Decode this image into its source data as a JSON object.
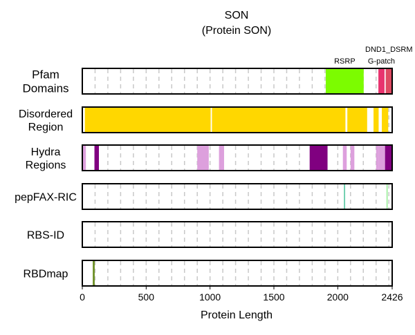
{
  "chart_data": {
    "type": "feature-track",
    "title": "SON",
    "subtitle": "(Protein SON)",
    "xlabel": "Protein Length",
    "xlim": [
      0,
      2426
    ],
    "xticks": [
      0,
      500,
      1000,
      1500,
      2000,
      2426
    ],
    "xtick_labels": [
      "0",
      "500",
      "1000",
      "1500",
      "2000",
      "2426"
    ],
    "grid": true,
    "grid_step": 100,
    "colors": {
      "grid": "#c8c8c8",
      "border": "#000000",
      "disordered": "#ffd700",
      "pfam_rsrp": "#7cfc00",
      "pfam_gpatch": "#e8336e",
      "pfam_dsrm": "#de4a62",
      "hydra_light": "#dda0dd",
      "hydra_dark": "#800080",
      "pepfax": "#66cdaa",
      "pepfax_light": "#90ee90",
      "rbdmap": "#6b8e23"
    },
    "tracks": [
      {
        "id": "pfam",
        "label": [
          "Pfam",
          "Domains"
        ],
        "features": [
          {
            "name": "RSRP",
            "start": 1906,
            "end": 2203,
            "color": "pfam_rsrp",
            "label_row": 0
          },
          {
            "name": "G-patch",
            "start": 2318,
            "end": 2366,
            "color": "pfam_gpatch",
            "label_row": 0
          },
          {
            "name": "DND1_DSRM",
            "start": 2375,
            "end": 2426,
            "color": "pfam_dsrm",
            "label_row": 1
          }
        ]
      },
      {
        "id": "disordered",
        "label": [
          "Disordered",
          "Region"
        ],
        "features": [
          {
            "start": 20,
            "end": 1005,
            "color": "disordered"
          },
          {
            "start": 1015,
            "end": 2060,
            "color": "disordered"
          },
          {
            "start": 2075,
            "end": 2230,
            "color": "disordered"
          },
          {
            "start": 2280,
            "end": 2320,
            "color": "disordered"
          },
          {
            "start": 2345,
            "end": 2395,
            "color": "disordered"
          }
        ]
      },
      {
        "id": "hydra",
        "label": [
          "Hydra",
          "Regions"
        ],
        "features": [
          {
            "start": 0,
            "end": 28,
            "color": "hydra_light"
          },
          {
            "start": 95,
            "end": 130,
            "color": "hydra_dark"
          },
          {
            "start": 900,
            "end": 990,
            "color": "hydra_light"
          },
          {
            "start": 1070,
            "end": 1110,
            "color": "hydra_light"
          },
          {
            "start": 1780,
            "end": 1920,
            "color": "hydra_dark"
          },
          {
            "start": 2040,
            "end": 2070,
            "color": "hydra_light"
          },
          {
            "start": 2100,
            "end": 2130,
            "color": "hydra_light"
          },
          {
            "start": 2300,
            "end": 2320,
            "color": "hydra_light"
          },
          {
            "start": 2320,
            "end": 2370,
            "color": "hydra_light"
          },
          {
            "start": 2370,
            "end": 2426,
            "color": "hydra_dark"
          }
        ]
      },
      {
        "id": "pepfax",
        "label": [
          "pepFAX-RIC"
        ],
        "features": [
          {
            "start": 2048,
            "end": 2058,
            "color": "pepfax"
          },
          {
            "start": 2382,
            "end": 2390,
            "color": "pepfax_light"
          }
        ]
      },
      {
        "id": "rbsid",
        "label": [
          "RBS-ID"
        ],
        "features": []
      },
      {
        "id": "rbdmap",
        "label": [
          "RBDmap"
        ],
        "features": [
          {
            "start": 82,
            "end": 97,
            "color": "rbdmap"
          }
        ]
      }
    ]
  }
}
